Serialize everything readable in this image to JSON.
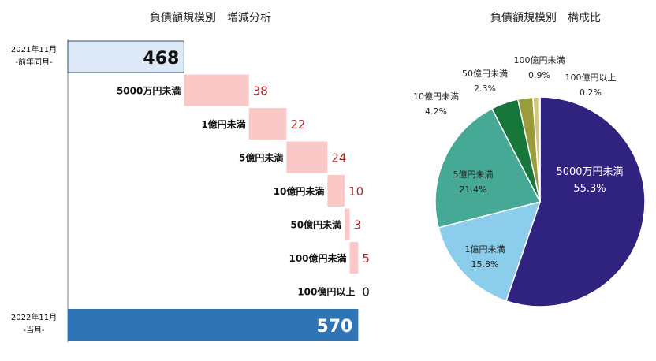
{
  "chart_data": [
    {
      "type": "waterfall",
      "title": "負債額規模別　増減分析",
      "baseline": 400,
      "start": {
        "label_line1": "2021年11月",
        "label_line2": "-前年同月-",
        "value": 468
      },
      "steps": [
        {
          "label": "5000万円未満",
          "value": 38
        },
        {
          "label": "1億円未満",
          "value": 22
        },
        {
          "label": "5億円未満",
          "value": 24
        },
        {
          "label": "10億円未満",
          "value": 10
        },
        {
          "label": "50億円未満",
          "value": 3
        },
        {
          "label": "100億円未満",
          "value": 5
        },
        {
          "label": "100億円以上",
          "value": 0
        }
      ],
      "end": {
        "label_line1": "2022年11月",
        "label_line2": "-当月-",
        "value": 570
      },
      "colors": {
        "start": "#dde9f6",
        "step": "#fbc8c8",
        "end": "#2e74b5",
        "step_value": "#b0262a"
      }
    },
    {
      "type": "pie",
      "title": "負債額規模別　構成比",
      "slices": [
        {
          "label": "5000万円未満",
          "value": 55.3,
          "display": "55.3%",
          "color": "#30237f"
        },
        {
          "label": "1億円未満",
          "value": 15.8,
          "display": "15.8%",
          "color": "#8dcdec"
        },
        {
          "label": "5億円未満",
          "value": 21.4,
          "display": "21.4%",
          "color": "#45a996"
        },
        {
          "label": "10億円未満",
          "value": 4.2,
          "display": "4.2%",
          "color": "#17763a"
        },
        {
          "label": "50億円未満",
          "value": 2.3,
          "display": "2.3%",
          "color": "#9a9c3c"
        },
        {
          "label": "100億円未満",
          "value": 0.9,
          "display": "0.9%",
          "color": "#d6c57c"
        },
        {
          "label": "100億円以上",
          "value": 0.2,
          "display": "0.2%",
          "color": "#ece0a8"
        }
      ]
    }
  ]
}
